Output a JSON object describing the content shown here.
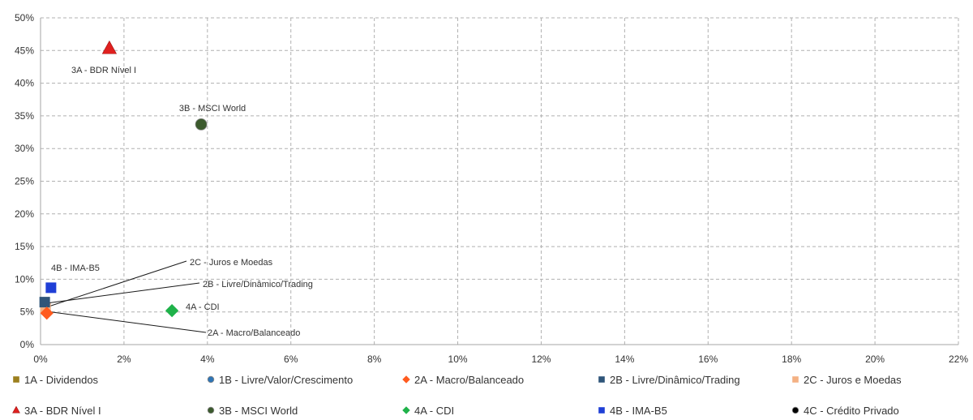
{
  "chart_data": {
    "type": "scatter",
    "title": "",
    "xlabel": "",
    "ylabel": "",
    "xlim": [
      0,
      22
    ],
    "ylim": [
      0,
      50
    ],
    "x_ticks": [
      0,
      2,
      4,
      6,
      8,
      10,
      12,
      14,
      16,
      18,
      20,
      22
    ],
    "y_ticks": [
      0,
      5,
      10,
      15,
      20,
      25,
      30,
      35,
      40,
      45,
      50
    ],
    "x_tick_labels": [
      "0%",
      "2%",
      "4%",
      "6%",
      "8%",
      "10%",
      "12%",
      "14%",
      "16%",
      "18%",
      "20%",
      "22%"
    ],
    "y_tick_labels": [
      "0%",
      "5%",
      "10%",
      "15%",
      "20%",
      "25%",
      "30%",
      "35%",
      "40%",
      "45%",
      "50%"
    ],
    "grid": true,
    "legend_position": "bottom",
    "series": [
      {
        "name": "1A - Dividendos",
        "color": "#9C7F1E",
        "marker": "square",
        "points": []
      },
      {
        "name": "1B - Livre/Valor/Crescimento",
        "color": "#2E75B6",
        "marker": "circle",
        "points": []
      },
      {
        "name": "2A - Macro/Balanceado",
        "color": "#FF5B1F",
        "marker": "diamond",
        "points": [
          {
            "x": 0.15,
            "y": 4.8,
            "label": "2A - Macro/Balanceado"
          }
        ]
      },
      {
        "name": "2B - Livre/Dinâmico/Trading",
        "color": "#2F5579",
        "marker": "square",
        "points": [
          {
            "x": 0.1,
            "y": 6.5,
            "label": "2B - Livre/Dinâmico/Trading"
          }
        ]
      },
      {
        "name": "2C - Juros e Moedas",
        "color": "#F4B183",
        "marker": "square",
        "points": [
          {
            "x": 0.12,
            "y": 5.6,
            "label": "2C - Juros e Moedas"
          }
        ]
      },
      {
        "name": "3A - BDR Nível I",
        "color": "#E0201F",
        "marker": "triangle",
        "points": [
          {
            "x": 1.65,
            "y": 45.3,
            "label": "3A - BDR Nível I"
          }
        ]
      },
      {
        "name": "3B - MSCI World",
        "color": "#3B5A2D",
        "marker": "circle",
        "points": [
          {
            "x": 3.85,
            "y": 33.7,
            "label": "3B - MSCI World"
          }
        ]
      },
      {
        "name": "4A - CDI",
        "color": "#1FB24A",
        "marker": "diamond",
        "points": [
          {
            "x": 3.15,
            "y": 5.2,
            "label": "4A - CDI"
          }
        ]
      },
      {
        "name": "4B - IMA-B5",
        "color": "#1F3FD6",
        "marker": "square",
        "points": [
          {
            "x": 0.25,
            "y": 8.7,
            "label": "4B - IMA-B5"
          }
        ]
      },
      {
        "name": "4C - Crédito Privado",
        "color": "#000000",
        "marker": "circle",
        "points": []
      }
    ]
  }
}
